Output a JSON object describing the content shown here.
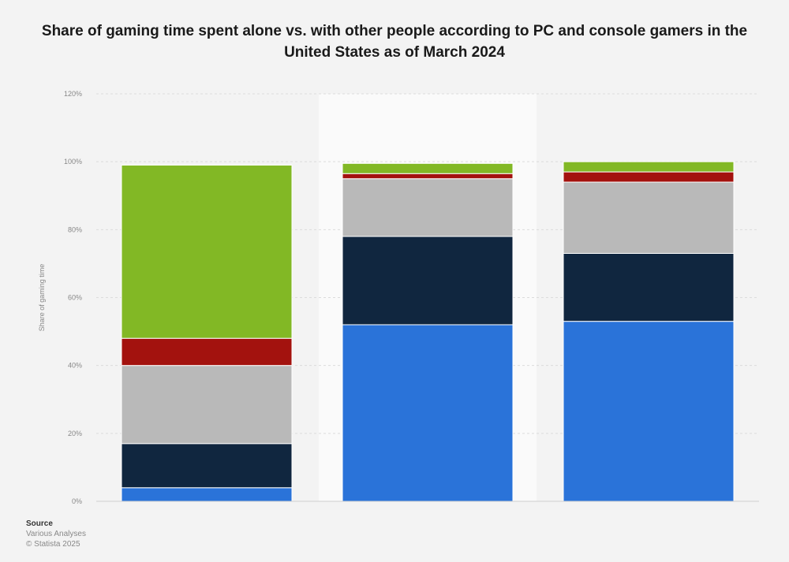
{
  "chart_data": {
    "type": "bar",
    "stacked": true,
    "title": "Share of gaming time spent alone vs. with other people according to PC and console gamers in the United States as of March 2024",
    "ylabel": "Share of gaming time",
    "ylim": [
      0,
      120
    ],
    "yticks": [
      "0%",
      "20%",
      "40%",
      "60%",
      "80%",
      "100%",
      "120%"
    ],
    "grid": true,
    "highlight_category_index": 1,
    "categories": [
      "",
      "",
      ""
    ],
    "series": [
      {
        "color": "#2a73d9",
        "values": [
          4,
          52,
          53
        ]
      },
      {
        "color": "#10263f",
        "values": [
          13,
          26,
          20
        ]
      },
      {
        "color": "#b9b9b9",
        "values": [
          23,
          17,
          21
        ]
      },
      {
        "color": "#a3120e",
        "values": [
          8,
          1.5,
          3
        ]
      },
      {
        "color": "#82b825",
        "values": [
          51,
          3,
          3
        ]
      }
    ]
  },
  "source": {
    "heading": "Source",
    "line1": "Various Analyses",
    "line2": "© Statista 2025"
  }
}
